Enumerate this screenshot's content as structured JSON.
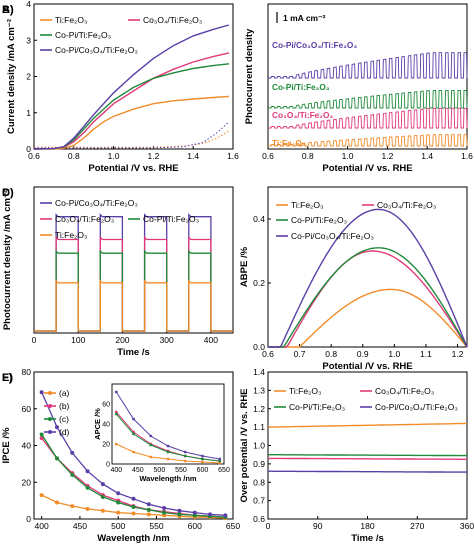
{
  "colors": {
    "ti": "#f28c28",
    "co3o4": "#e03a7a",
    "copi": "#1f8a3a",
    "copico3o4": "#5b3fa8",
    "axis": "#000000"
  },
  "chart_data": [
    {
      "panel": "A)",
      "type": "line",
      "xlabel": "Potential /V vs. RHE",
      "ylabel": "Current density /mA cm⁻²",
      "xlim": [
        0.6,
        1.6
      ],
      "ylim": [
        0,
        4
      ],
      "xticks": [
        "0.6",
        "0.8",
        "1.0",
        "1.2",
        "1.4",
        "1.6"
      ],
      "yticks": [
        "0",
        "1",
        "2",
        "3",
        "4"
      ],
      "legend": [
        "Ti:Fe₂O₃",
        "Co₃O₄/Ti:Fe₂O₃",
        "Co-Pi/Ti:Fe₂O₃",
        "Co-Pi/Co₃O₄/Ti:Fe₂O₃"
      ],
      "series": [
        {
          "name": "Ti:Fe₂O₃",
          "color": "ti",
          "x": [
            0.6,
            0.7,
            0.75,
            0.8,
            0.85,
            0.9,
            0.95,
            1.0,
            1.1,
            1.2,
            1.3,
            1.4,
            1.5,
            1.58
          ],
          "y": [
            0,
            0,
            0.02,
            0.1,
            0.3,
            0.55,
            0.75,
            0.9,
            1.1,
            1.25,
            1.33,
            1.38,
            1.42,
            1.45
          ]
        },
        {
          "name": "Co₃O₄/Ti:Fe₂O₃",
          "color": "co3o4",
          "x": [
            0.6,
            0.7,
            0.75,
            0.8,
            0.85,
            0.9,
            0.95,
            1.0,
            1.1,
            1.2,
            1.3,
            1.4,
            1.5,
            1.58
          ],
          "y": [
            0,
            0.01,
            0.05,
            0.2,
            0.45,
            0.75,
            1.0,
            1.25,
            1.6,
            1.95,
            2.2,
            2.4,
            2.55,
            2.65
          ]
        },
        {
          "name": "Co-Pi/Ti:Fe₂O₃",
          "color": "copi",
          "x": [
            0.6,
            0.7,
            0.75,
            0.8,
            0.85,
            0.9,
            0.95,
            1.0,
            1.1,
            1.2,
            1.3,
            1.4,
            1.5,
            1.58
          ],
          "y": [
            0,
            0.01,
            0.06,
            0.25,
            0.55,
            0.85,
            1.1,
            1.35,
            1.7,
            1.95,
            2.1,
            2.22,
            2.3,
            2.35
          ]
        },
        {
          "name": "Co-Pi/Co₃O₄/Ti:Fe₂O₃",
          "color": "copico3o4",
          "x": [
            0.6,
            0.7,
            0.75,
            0.8,
            0.85,
            0.9,
            0.95,
            1.0,
            1.1,
            1.2,
            1.3,
            1.4,
            1.5,
            1.58
          ],
          "y": [
            0,
            0.01,
            0.07,
            0.3,
            0.62,
            0.95,
            1.25,
            1.55,
            2.05,
            2.5,
            2.85,
            3.12,
            3.3,
            3.42
          ]
        },
        {
          "name": "dark",
          "color": "ti",
          "dotted": true,
          "x": [
            0.6,
            1.2,
            1.35,
            1.45,
            1.52,
            1.58
          ],
          "y": [
            0.05,
            0.05,
            0.08,
            0.15,
            0.3,
            0.5
          ]
        },
        {
          "name": "dark2",
          "color": "copico3o4",
          "dotted": true,
          "x": [
            0.6,
            1.2,
            1.35,
            1.45,
            1.52,
            1.58
          ],
          "y": [
            0.03,
            0.03,
            0.06,
            0.18,
            0.45,
            0.75
          ]
        }
      ]
    },
    {
      "panel": "B)",
      "type": "line",
      "xlabel": "Potential /V vs. RHE",
      "ylabel": "Photocurrent density",
      "xlim": [
        0.6,
        1.6
      ],
      "xticks": [
        "0.6",
        "0.8",
        "1.0",
        "1.2",
        "1.4",
        "1.6"
      ],
      "scalebar": "1 mA cm⁻²",
      "labels": [
        "Co-Pi/Co₃O₄/Ti:Fe₂O₃",
        "Co-Pi/Ti:Fe₂O₃",
        "Co₃O₄/Ti:Fe₂O₃",
        "Ti:Fe₂O₃"
      ],
      "series": [
        {
          "name": "Co-Pi/Co₃O₄/Ti:Fe₂O₃",
          "color": "copico3o4",
          "amp_max": 3.4
        },
        {
          "name": "Co-Pi/Ti:Fe₂O₃",
          "color": "copi",
          "amp_max": 2.3
        },
        {
          "name": "Co₃O₄/Ti:Fe₂O₃",
          "color": "co3o4",
          "amp_max": 2.6
        },
        {
          "name": "Ti:Fe₂O₃",
          "color": "ti",
          "amp_max": 1.4
        }
      ]
    },
    {
      "panel": "C)",
      "type": "line",
      "xlabel": "Time /s",
      "ylabel": "Photocurrent density /mA cm⁻²",
      "xlim": [
        0,
        450
      ],
      "ylim": [
        0,
        3.2
      ],
      "xticks": [
        "0",
        "100",
        "200",
        "300",
        "400"
      ],
      "legend": [
        "Co-Pi/Co₃O₄/Ti:Fe₂O₃",
        "Co₃O₄/Ti:Fe₂O₃",
        "Co-Pi/Ti:Fe₂O₃",
        "Ti:Fe₂O₃"
      ],
      "on_intervals": [
        [
          50,
          100
        ],
        [
          150,
          200
        ],
        [
          250,
          300
        ],
        [
          350,
          400
        ]
      ],
      "series": [
        {
          "name": "Co-Pi/Co₃O₄/Ti:Fe₂O₃",
          "color": "copico3o4",
          "level": 2.55
        },
        {
          "name": "Co₃O₄/Ti:Fe₂O₃",
          "color": "co3o4",
          "level": 2.05
        },
        {
          "name": "Co-Pi/Ti:Fe₂O₃",
          "color": "copi",
          "level": 1.75
        },
        {
          "name": "Ti:Fe₂O₃",
          "color": "ti",
          "level": 1.1
        }
      ]
    },
    {
      "panel": "D)",
      "type": "line",
      "xlabel": "Potential /V vs. RHE",
      "ylabel": "ABPE /%",
      "xlim": [
        0.6,
        1.23
      ],
      "ylim": [
        0,
        0.5
      ],
      "xticks": [
        "0.6",
        "0.7",
        "0.8",
        "0.9",
        "1.0",
        "1.1",
        "1.2"
      ],
      "yticks": [
        "0.0",
        "0.2",
        "0.4"
      ],
      "legend": [
        "Ti:Fe₂O₃",
        "Co₃O₄/Ti:Fe₂O₃",
        "Co-Pi/Ti:Fe₂O₃",
        "Co-Pi/Co₃O₄/Ti:Fe₂O₃"
      ],
      "series": [
        {
          "name": "Ti:Fe₂O₃",
          "color": "ti",
          "peak_x": 0.99,
          "peak_y": 0.18,
          "start": 0.7
        },
        {
          "name": "Co₃O₄/Ti:Fe₂O₃",
          "color": "co3o4",
          "peak_x": 0.93,
          "peak_y": 0.3,
          "start": 0.66
        },
        {
          "name": "Co-Pi/Ti:Fe₂O₃",
          "color": "copi",
          "peak_x": 0.95,
          "peak_y": 0.31,
          "start": 0.65
        },
        {
          "name": "Co-Pi/Co₃O₄/Ti:Fe₂O₃",
          "color": "copico3o4",
          "peak_x": 0.95,
          "peak_y": 0.43,
          "start": 0.64
        }
      ]
    },
    {
      "panel": "E)",
      "type": "line",
      "xlabel": "Wavelength /nm",
      "ylabel": "IPCE /%",
      "xlim": [
        390,
        650
      ],
      "ylim": [
        0,
        80
      ],
      "xticks": [
        "400",
        "450",
        "500",
        "550",
        "600",
        "650"
      ],
      "yticks": [
        "0",
        "20",
        "40",
        "60",
        "80"
      ],
      "legend": [
        "(a)",
        "(b)",
        "(c)",
        "(d)"
      ],
      "series": [
        {
          "name": "(a)",
          "color": "ti",
          "x": [
            400,
            420,
            440,
            460,
            480,
            500,
            520,
            540,
            560,
            580,
            600,
            620,
            640
          ],
          "y": [
            13,
            9,
            7,
            5.5,
            4.5,
            3.5,
            3,
            2.5,
            2,
            1.5,
            1,
            1,
            0.5
          ]
        },
        {
          "name": "(b)",
          "color": "co3o4",
          "x": [
            400,
            420,
            440,
            460,
            480,
            500,
            520,
            540,
            560,
            580,
            600,
            620,
            640
          ],
          "y": [
            44,
            33,
            25,
            18,
            13,
            10,
            7,
            5,
            4,
            3,
            2,
            1.5,
            1
          ]
        },
        {
          "name": "(c)",
          "color": "copi",
          "x": [
            400,
            420,
            440,
            460,
            480,
            500,
            520,
            540,
            560,
            580,
            600,
            620,
            640
          ],
          "y": [
            46,
            33,
            24,
            17,
            12,
            9,
            6.5,
            5,
            3.5,
            2.5,
            2,
            1.5,
            1
          ]
        },
        {
          "name": "(d)",
          "color": "copico3o4",
          "x": [
            400,
            420,
            440,
            460,
            480,
            500,
            520,
            540,
            560,
            580,
            600,
            620,
            640
          ],
          "y": [
            69,
            50,
            36,
            26,
            19,
            14,
            11,
            8,
            6,
            4.5,
            3.5,
            2.5,
            2
          ]
        }
      ],
      "inset": {
        "xlabel": "Wavelength /nm",
        "ylabel": "APCE /%",
        "xlim": [
          390,
          650
        ],
        "ylim": [
          0,
          80
        ],
        "xticks": [
          "400",
          "450",
          "500",
          "550",
          "600",
          "650"
        ],
        "yticks": [
          "0",
          "20",
          "40",
          "60"
        ],
        "series": [
          {
            "color": "ti",
            "x": [
              400,
              440,
              480,
              520,
              560,
              600,
              640
            ],
            "y": [
              20,
              12,
              7,
              5,
              3,
              2,
              1
            ]
          },
          {
            "color": "co3o4",
            "x": [
              400,
              440,
              480,
              520,
              560,
              600,
              640
            ],
            "y": [
              52,
              32,
              20,
              13,
              8,
              5,
              3
            ]
          },
          {
            "color": "copi",
            "x": [
              400,
              440,
              480,
              520,
              560,
              600,
              640
            ],
            "y": [
              50,
              30,
              19,
              12,
              8,
              5,
              3
            ]
          },
          {
            "color": "copico3o4",
            "x": [
              400,
              440,
              480,
              520,
              560,
              600,
              640
            ],
            "y": [
              72,
              45,
              28,
              18,
              12,
              8,
              5
            ]
          }
        ]
      }
    },
    {
      "panel": "F)",
      "type": "line",
      "xlabel": "Time /s",
      "ylabel": "Over potential /V vs. RHE",
      "xlim": [
        0,
        3600
      ],
      "ylim": [
        0.6,
        1.4
      ],
      "xticks": [
        "0",
        "90",
        "180",
        "270",
        "360"
      ],
      "yticks": [
        "0.6",
        "0.7",
        "0.8",
        "0.9",
        "1.0",
        "1.1",
        "1.2",
        "1.3",
        "1.4"
      ],
      "legend": [
        "Ti:Fe₂O₃",
        "Co₃O₄/Ti:Fe₂O₃",
        "Co-Pi/Ti:Fe₂O₃",
        "Co-Pi/Co₃O₄/Ti:Fe₂O₃"
      ],
      "series": [
        {
          "name": "Ti:Fe₂O₃",
          "color": "ti",
          "y0": 1.1,
          "y1": 1.12
        },
        {
          "name": "Co₃O₄/Ti:Fe₂O₃",
          "color": "co3o4",
          "y0": 0.93,
          "y1": 0.925
        },
        {
          "name": "Co-Pi/Ti:Fe₂O₃",
          "color": "copi",
          "y0": 0.95,
          "y1": 0.945
        },
        {
          "name": "Co-Pi/Co₃O₄/Ti:Fe₂O₃",
          "color": "copico3o4",
          "y0": 0.86,
          "y1": 0.855
        }
      ]
    }
  ]
}
